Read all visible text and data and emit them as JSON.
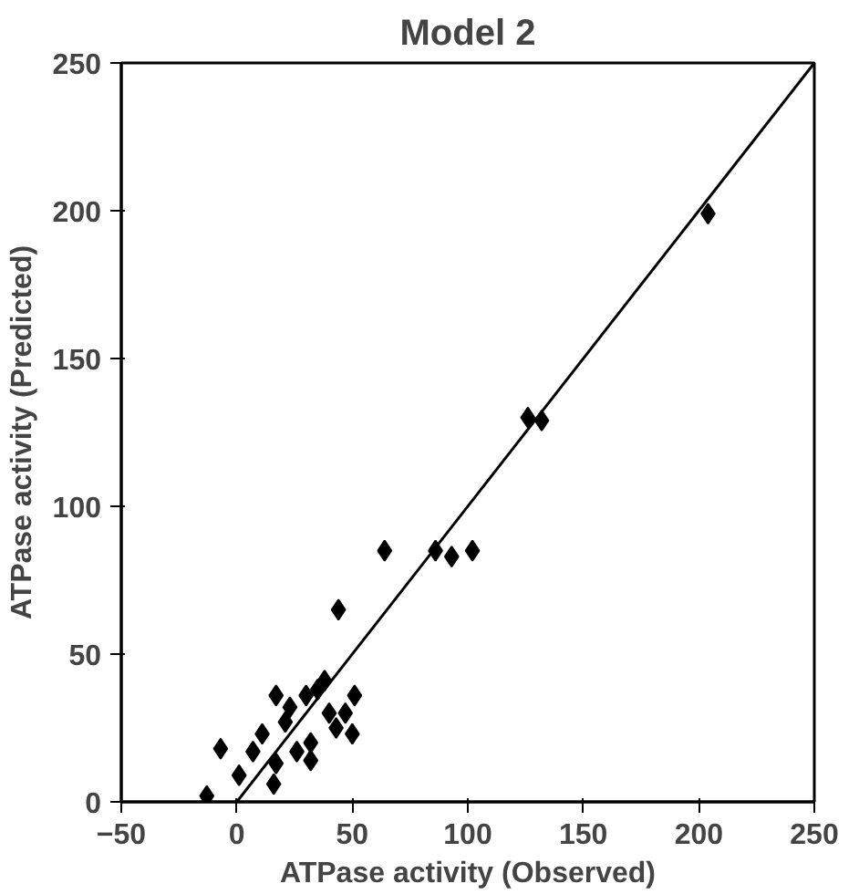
{
  "chart_data": {
    "type": "scatter",
    "title": "Model 2",
    "xlabel": "ATPase activity (Observed)",
    "ylabel": "ATPase activity (Predicted)",
    "xlim": [
      -50,
      250
    ],
    "ylim": [
      0,
      250
    ],
    "xticks": [
      -50,
      0,
      50,
      100,
      150,
      200,
      250
    ],
    "yticks": [
      0,
      50,
      100,
      150,
      200,
      250
    ],
    "grid": false,
    "marker": "diamond",
    "series": [
      {
        "color": "#000000",
        "x": [
          -7,
          -13,
          1,
          7,
          11,
          16,
          17,
          17,
          23,
          26,
          32,
          32,
          30,
          35,
          38,
          40,
          44,
          47,
          51,
          50,
          43,
          21,
          64,
          86,
          93,
          102,
          126,
          132,
          204
        ],
        "values": [
          18,
          2,
          9,
          17,
          23,
          6,
          13,
          36,
          32,
          17,
          20,
          14,
          36,
          38,
          41,
          30,
          65,
          30,
          36,
          23,
          25,
          27,
          85,
          85,
          83,
          85,
          130,
          129,
          199
        ]
      },
      {
        "type": "line",
        "color": "#000000",
        "marker": "none",
        "line_style": "solid",
        "x": [
          0,
          250
        ],
        "values": [
          0,
          250
        ]
      }
    ]
  }
}
